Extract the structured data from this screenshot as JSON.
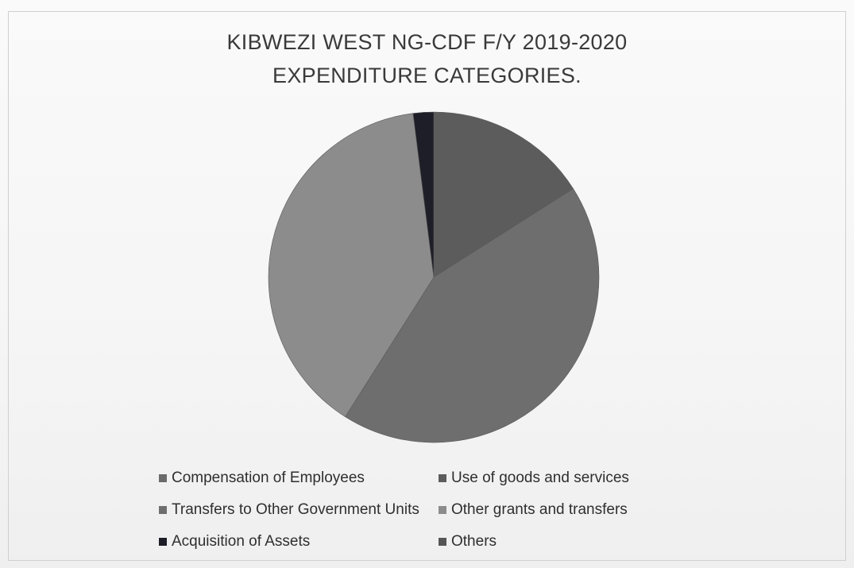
{
  "chart_data": {
    "type": "pie",
    "title_lines": [
      "KIBWEZI WEST NG-CDF F/Y 2019-2020",
      "EXPENDITURE CATEGORIES."
    ],
    "legend_placement": "bottom",
    "categories": [
      "Compensation of Employees",
      "Use of goods and services",
      "Transfers to Other Government Units",
      "Other grants and transfers",
      "Acquisition of Assets",
      "Others"
    ],
    "values": [
      0,
      16,
      43,
      39,
      2,
      0
    ],
    "colors": [
      "#6a6a6a",
      "#5c5c5c",
      "#6e6e6e",
      "#8c8c8c",
      "#1e1e28",
      "#555555"
    ]
  }
}
